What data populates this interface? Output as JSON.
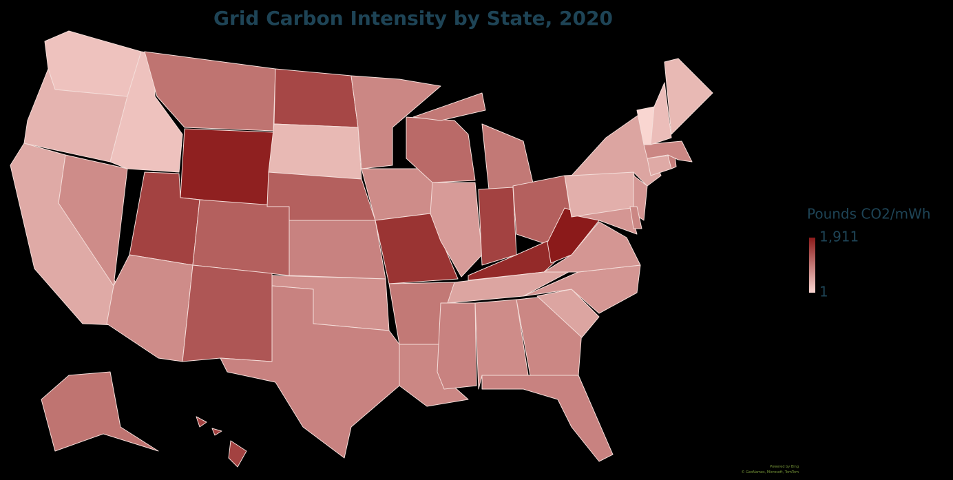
{
  "chart_data": {
    "type": "choropleth",
    "title": "Grid Carbon Intensity by State, 2020",
    "legend_title": "Pounds CO2/mWh",
    "scale": [
      {
        "value": 1911,
        "label": "1,911"
      },
      {
        "value": 1,
        "label": "1"
      }
    ],
    "color_range": [
      "#f9d6d1",
      "#8b1a1a"
    ],
    "values": [
      200,
      350,
      450,
      750,
      200,
      1000,
      1850,
      1500,
      1200,
      750,
      1300,
      1450,
      300,
      1200,
      850,
      700,
      850,
      800,
      750,
      1650,
      950,
      800,
      1100,
      600,
      950,
      1500,
      1200,
      1750,
      500,
      850,
      750,
      800,
      850,
      500,
      650,
      650,
      1911,
      650,
      400,
      500,
      650,
      800,
      450,
      900,
      800,
      1,
      250,
      300,
      1000,
      1500
    ],
    "credits": [
      "Powered by Bing",
      "© GeoNames, Microsoft, TomTom"
    ]
  }
}
